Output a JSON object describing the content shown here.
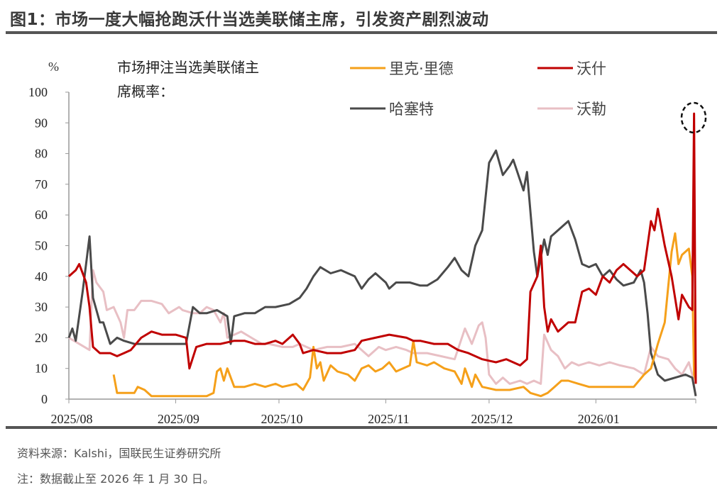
{
  "title": "图1：市场一度大幅抢跑沃什当选美联储主席，引发资产剧烈波动",
  "footer": {
    "source": "资料来源：Kalshi，国联民生证券研究所",
    "note": "注：数据截止至 2026 年 1 月 30 日。"
  },
  "chart_data": {
    "type": "line",
    "title": "市场押注当选美联储主席概率：",
    "title_lines": [
      "市场押注当选美联储主",
      "席概率："
    ],
    "ylabel": "%",
    "xlabel": "",
    "ylim": [
      0,
      100
    ],
    "yticks": [
      0,
      10,
      20,
      30,
      40,
      50,
      60,
      70,
      80,
      90,
      100
    ],
    "x_unit": "days since 2025/08/01",
    "xlim": [
      0,
      182
    ],
    "xticks": [
      {
        "day": 0,
        "label": "2025/08"
      },
      {
        "day": 31,
        "label": "2025/09"
      },
      {
        "day": 61,
        "label": "2025/10"
      },
      {
        "day": 92,
        "label": "2025/11"
      },
      {
        "day": 122,
        "label": "2025/12"
      },
      {
        "day": 153,
        "label": "2026/01"
      }
    ],
    "grid": false,
    "legend_placement": "top",
    "annotation": "dashed-circle-on-warsh-peak",
    "series": [
      {
        "name": "里克·里德",
        "color": "#f5a01a",
        "points": [
          [
            13,
            8
          ],
          [
            14,
            2
          ],
          [
            17,
            2
          ],
          [
            19,
            2
          ],
          [
            20,
            4
          ],
          [
            22,
            3
          ],
          [
            24,
            1
          ],
          [
            29,
            1
          ],
          [
            34,
            1
          ],
          [
            40,
            1
          ],
          [
            42,
            2
          ],
          [
            43,
            9
          ],
          [
            44,
            10
          ],
          [
            45,
            6
          ],
          [
            46,
            10
          ],
          [
            48,
            4
          ],
          [
            51,
            4
          ],
          [
            54,
            5
          ],
          [
            57,
            4
          ],
          [
            60,
            5
          ],
          [
            62,
            4
          ],
          [
            66,
            5
          ],
          [
            68,
            3
          ],
          [
            70,
            7
          ],
          [
            71,
            17
          ],
          [
            72,
            10
          ],
          [
            73,
            12
          ],
          [
            74,
            6
          ],
          [
            76,
            11
          ],
          [
            78,
            9
          ],
          [
            81,
            8
          ],
          [
            83,
            6
          ],
          [
            85,
            10
          ],
          [
            87,
            11
          ],
          [
            89,
            9
          ],
          [
            91,
            10
          ],
          [
            93,
            12
          ],
          [
            95,
            9
          ],
          [
            99,
            11
          ],
          [
            100,
            19
          ],
          [
            101,
            12
          ],
          [
            104,
            11
          ],
          [
            106,
            12
          ],
          [
            109,
            10
          ],
          [
            112,
            9
          ],
          [
            114,
            5
          ],
          [
            115,
            10
          ],
          [
            117,
            4
          ],
          [
            118,
            8
          ],
          [
            120,
            4
          ],
          [
            124,
            3
          ],
          [
            128,
            3
          ],
          [
            132,
            4
          ],
          [
            134,
            2
          ],
          [
            137,
            1
          ],
          [
            139,
            2
          ],
          [
            141,
            4
          ],
          [
            143,
            6
          ],
          [
            145,
            6
          ],
          [
            148,
            5
          ],
          [
            151,
            4
          ],
          [
            155,
            4
          ],
          [
            159,
            4
          ],
          [
            164,
            4
          ],
          [
            167,
            8
          ],
          [
            169,
            10
          ],
          [
            171,
            18
          ],
          [
            173,
            25
          ],
          [
            175,
            48
          ],
          [
            176,
            54
          ],
          [
            177,
            44
          ],
          [
            178,
            47
          ],
          [
            180,
            49
          ],
          [
            181,
            40
          ],
          [
            181.5,
            8
          ],
          [
            182,
            6
          ]
        ]
      },
      {
        "name": "沃什",
        "color": "#c00000",
        "points": [
          [
            0,
            40
          ],
          [
            2,
            42
          ],
          [
            3,
            44
          ],
          [
            5,
            38
          ],
          [
            6,
            30
          ],
          [
            7,
            17
          ],
          [
            9,
            15
          ],
          [
            12,
            15
          ],
          [
            14,
            14
          ],
          [
            16,
            15
          ],
          [
            18,
            16
          ],
          [
            21,
            20
          ],
          [
            24,
            22
          ],
          [
            27,
            21
          ],
          [
            31,
            21
          ],
          [
            34,
            20
          ],
          [
            35,
            10
          ],
          [
            37,
            17
          ],
          [
            40,
            18
          ],
          [
            44,
            18
          ],
          [
            48,
            19
          ],
          [
            51,
            19
          ],
          [
            54,
            18
          ],
          [
            57,
            18
          ],
          [
            60,
            19
          ],
          [
            62,
            18
          ],
          [
            65,
            21
          ],
          [
            67,
            18
          ],
          [
            68,
            15
          ],
          [
            71,
            16
          ],
          [
            75,
            15
          ],
          [
            79,
            15
          ],
          [
            83,
            16
          ],
          [
            85,
            19
          ],
          [
            89,
            20
          ],
          [
            93,
            21
          ],
          [
            98,
            20
          ],
          [
            100,
            19
          ],
          [
            102,
            19
          ],
          [
            106,
            18
          ],
          [
            110,
            18
          ],
          [
            113,
            16
          ],
          [
            116,
            15
          ],
          [
            120,
            13
          ],
          [
            124,
            12
          ],
          [
            127,
            13
          ],
          [
            131,
            11
          ],
          [
            133,
            13
          ],
          [
            134,
            35
          ],
          [
            136,
            40
          ],
          [
            137,
            50
          ],
          [
            138,
            30
          ],
          [
            139,
            22
          ],
          [
            140,
            26
          ],
          [
            142,
            22
          ],
          [
            145,
            25
          ],
          [
            147,
            25
          ],
          [
            149,
            35
          ],
          [
            151,
            36
          ],
          [
            153,
            34
          ],
          [
            155,
            40
          ],
          [
            157,
            38
          ],
          [
            159,
            42
          ],
          [
            161,
            44
          ],
          [
            165,
            40
          ],
          [
            167,
            42
          ],
          [
            169,
            58
          ],
          [
            170,
            55
          ],
          [
            171,
            62
          ],
          [
            173,
            50
          ],
          [
            175,
            40
          ],
          [
            177,
            26
          ],
          [
            178,
            34
          ],
          [
            180,
            30
          ],
          [
            181,
            29
          ],
          [
            181.5,
            93
          ],
          [
            182,
            5
          ]
        ]
      },
      {
        "name": "哈塞特",
        "color": "#4a4a4a",
        "points": [
          [
            0,
            20
          ],
          [
            1,
            23
          ],
          [
            2,
            19
          ],
          [
            4,
            35
          ],
          [
            6,
            53
          ],
          [
            7,
            33
          ],
          [
            9,
            25
          ],
          [
            10,
            25
          ],
          [
            12,
            18
          ],
          [
            14,
            20
          ],
          [
            16,
            19
          ],
          [
            19,
            18
          ],
          [
            24,
            18
          ],
          [
            32,
            18
          ],
          [
            34,
            18
          ],
          [
            36,
            30
          ],
          [
            38,
            28
          ],
          [
            40,
            28
          ],
          [
            43,
            29
          ],
          [
            46,
            27
          ],
          [
            47,
            18
          ],
          [
            48,
            27
          ],
          [
            51,
            28
          ],
          [
            54,
            28
          ],
          [
            57,
            30
          ],
          [
            60,
            30
          ],
          [
            64,
            31
          ],
          [
            67,
            33
          ],
          [
            69,
            36
          ],
          [
            71,
            40
          ],
          [
            73,
            43
          ],
          [
            76,
            41
          ],
          [
            79,
            42
          ],
          [
            81,
            41
          ],
          [
            83,
            40
          ],
          [
            85,
            36
          ],
          [
            87,
            39
          ],
          [
            89,
            41
          ],
          [
            92,
            38
          ],
          [
            93,
            36
          ],
          [
            95,
            38
          ],
          [
            99,
            38
          ],
          [
            102,
            37
          ],
          [
            104,
            37
          ],
          [
            107,
            39
          ],
          [
            110,
            43
          ],
          [
            112,
            46
          ],
          [
            114,
            42
          ],
          [
            116,
            40
          ],
          [
            118,
            50
          ],
          [
            120,
            55
          ],
          [
            122,
            77
          ],
          [
            124,
            81
          ],
          [
            126,
            73
          ],
          [
            128,
            76
          ],
          [
            129,
            78
          ],
          [
            132,
            68
          ],
          [
            133,
            74
          ],
          [
            135,
            48
          ],
          [
            136,
            40
          ],
          [
            138,
            52
          ],
          [
            139,
            47
          ],
          [
            140,
            53
          ],
          [
            142,
            55
          ],
          [
            145,
            58
          ],
          [
            147,
            52
          ],
          [
            149,
            44
          ],
          [
            151,
            43
          ],
          [
            153,
            44
          ],
          [
            155,
            40
          ],
          [
            157,
            42
          ],
          [
            159,
            39
          ],
          [
            161,
            37
          ],
          [
            164,
            38
          ],
          [
            166,
            42
          ],
          [
            167,
            38
          ],
          [
            168,
            28
          ],
          [
            169,
            15
          ],
          [
            171,
            8
          ],
          [
            173,
            6
          ],
          [
            176,
            7
          ],
          [
            179,
            8
          ],
          [
            181,
            7
          ],
          [
            182,
            1
          ]
        ]
      },
      {
        "name": "沃勒",
        "color": "#e8bfc4",
        "points": [
          [
            0,
            20
          ],
          [
            3,
            18
          ],
          [
            6,
            16
          ],
          [
            7,
            42
          ],
          [
            8,
            38
          ],
          [
            10,
            35
          ],
          [
            11,
            29
          ],
          [
            13,
            30
          ],
          [
            15,
            25
          ],
          [
            16,
            20
          ],
          [
            17,
            29
          ],
          [
            19,
            29
          ],
          [
            21,
            32
          ],
          [
            24,
            32
          ],
          [
            27,
            31
          ],
          [
            29,
            28
          ],
          [
            32,
            30
          ],
          [
            33,
            29
          ],
          [
            36,
            28
          ],
          [
            38,
            28
          ],
          [
            40,
            30
          ],
          [
            42,
            29
          ],
          [
            44,
            25
          ],
          [
            45,
            28
          ],
          [
            46,
            20
          ],
          [
            48,
            21
          ],
          [
            50,
            22
          ],
          [
            53,
            20
          ],
          [
            56,
            18
          ],
          [
            58,
            18
          ],
          [
            62,
            17
          ],
          [
            65,
            17
          ],
          [
            67,
            18
          ],
          [
            71,
            16
          ],
          [
            75,
            17
          ],
          [
            79,
            17
          ],
          [
            83,
            18
          ],
          [
            85,
            16
          ],
          [
            87,
            14
          ],
          [
            90,
            17
          ],
          [
            92,
            16
          ],
          [
            95,
            17
          ],
          [
            98,
            16
          ],
          [
            100,
            15
          ],
          [
            104,
            15
          ],
          [
            108,
            14
          ],
          [
            112,
            13
          ],
          [
            115,
            23
          ],
          [
            117,
            18
          ],
          [
            119,
            24
          ],
          [
            120,
            25
          ],
          [
            121,
            20
          ],
          [
            122,
            8
          ],
          [
            124,
            5
          ],
          [
            126,
            7
          ],
          [
            128,
            5
          ],
          [
            131,
            6
          ],
          [
            133,
            5
          ],
          [
            135,
            6
          ],
          [
            137,
            5
          ],
          [
            138,
            21
          ],
          [
            140,
            16
          ],
          [
            142,
            14
          ],
          [
            144,
            10
          ],
          [
            146,
            12
          ],
          [
            148,
            11
          ],
          [
            151,
            12
          ],
          [
            154,
            11
          ],
          [
            157,
            12
          ],
          [
            160,
            11
          ],
          [
            164,
            10
          ],
          [
            167,
            8
          ],
          [
            169,
            17
          ],
          [
            171,
            14
          ],
          [
            174,
            13
          ],
          [
            176,
            10
          ],
          [
            178,
            8
          ],
          [
            180,
            12
          ],
          [
            181,
            8
          ],
          [
            182,
            1
          ]
        ]
      }
    ]
  }
}
